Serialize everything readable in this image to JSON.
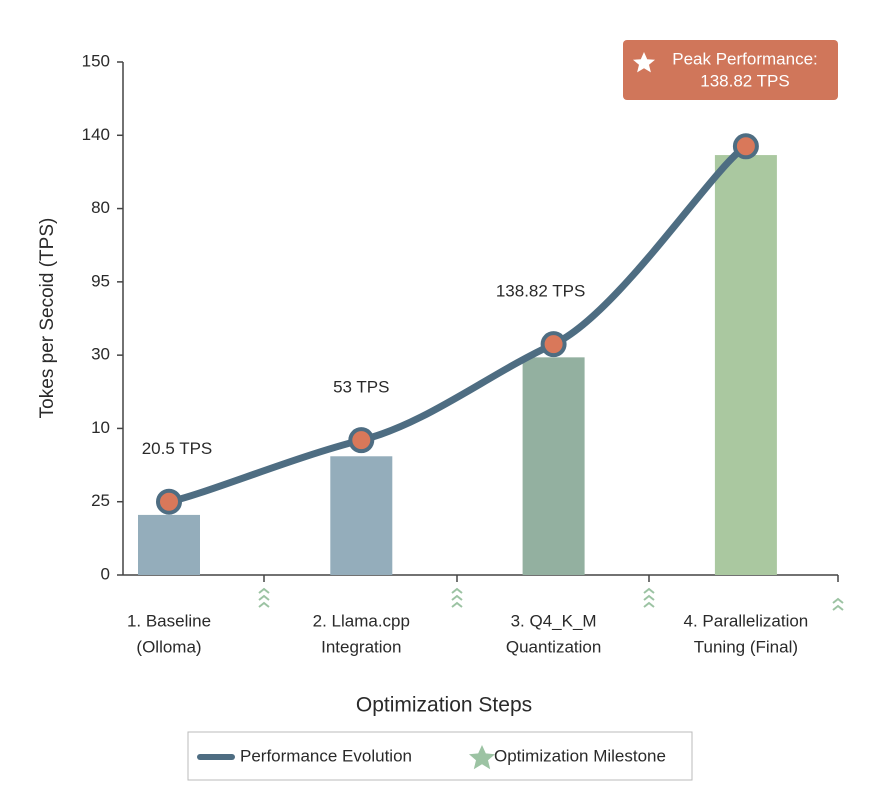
{
  "chart_data": {
    "type": "bar_line",
    "ylabel": "Tokes per Secoid (TPS)",
    "xlabel": "Optimization Steps",
    "categories": [
      [
        "1. Baseline",
        "(Olloma)"
      ],
      [
        "2. Llama.cpp",
        "Integration"
      ],
      [
        "3. Q4_K_M",
        "Quantization"
      ],
      [
        "4. Parallelization",
        "Tuning (Final)"
      ]
    ],
    "bars": {
      "values": [
        0.82,
        1.62,
        2.97,
        5.73
      ],
      "colors": [
        "#94adbb",
        "#94adbb",
        "#93b0a0",
        "#aac8a0"
      ]
    },
    "series": [
      {
        "name": "Performance Evolution",
        "color": "#4e6d82",
        "values": [
          1.0,
          1.84,
          3.15,
          5.85
        ]
      }
    ],
    "milestone_legend": {
      "name": "Optimization Milestone",
      "color": "#9cc3a3"
    },
    "annotations": [
      "20.5 TPS",
      "53 TPS",
      "138.82 TPS"
    ],
    "peak_label": [
      "Peak Performance:",
      "138.82 TPS"
    ],
    "ylim": [
      0,
      7
    ],
    "yticks": [
      {
        "value": 0,
        "label": "0"
      },
      {
        "value": 1,
        "label": "25"
      },
      {
        "value": 2,
        "label": "10"
      },
      {
        "value": 3,
        "label": "30"
      },
      {
        "value": 4,
        "label": "95"
      },
      {
        "value": 5,
        "label": "80"
      },
      {
        "value": 6,
        "label": "140"
      },
      {
        "value": 7,
        "label": "150"
      }
    ]
  }
}
